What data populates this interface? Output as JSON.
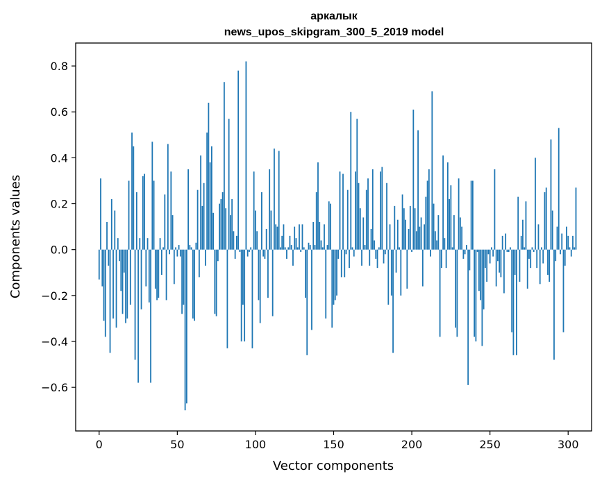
{
  "chart_data": {
    "type": "bar",
    "title": "аркалык",
    "subtitle": "news_upos_skipgram_300_5_2019 model",
    "xlabel": "Vector components",
    "ylabel": "Components values",
    "xlim": [
      -15,
      315
    ],
    "ylim": [
      -0.79,
      0.9
    ],
    "xticks": [
      0,
      50,
      100,
      150,
      200,
      250,
      300
    ],
    "xtick_labels": [
      "0",
      "50",
      "100",
      "150",
      "200",
      "250",
      "300"
    ],
    "yticks": [
      -0.6,
      -0.4,
      -0.2,
      0.0,
      0.2,
      0.4,
      0.6,
      0.8
    ],
    "ytick_labels": [
      "−0.6",
      "−0.4",
      "−0.2",
      "0.0",
      "0.2",
      "0.4",
      "0.6",
      "0.8"
    ],
    "grid": false,
    "color": "#1f77b4",
    "x_start": 0,
    "values": [
      -0.13,
      0.31,
      -0.16,
      -0.31,
      -0.38,
      0.12,
      -0.07,
      -0.45,
      0.22,
      -0.3,
      0.17,
      -0.34,
      0.05,
      -0.05,
      -0.18,
      -0.28,
      -0.1,
      -0.32,
      -0.3,
      0.3,
      -0.24,
      0.51,
      0.45,
      -0.48,
      0.25,
      -0.58,
      0.05,
      -0.26,
      0.32,
      0.33,
      -0.16,
      0.05,
      -0.23,
      -0.58,
      0.47,
      0.3,
      -0.17,
      -0.22,
      -0.21,
      0.05,
      -0.11,
      0.01,
      0.24,
      -0.22,
      0.46,
      -0.02,
      0.34,
      0.15,
      -0.15,
      0.01,
      -0.03,
      0.02,
      -0.03,
      -0.28,
      -0.24,
      -0.7,
      -0.67,
      0.35,
      0.02,
      0.01,
      -0.3,
      -0.31,
      0.03,
      0.26,
      -0.12,
      0.41,
      0.19,
      0.29,
      -0.07,
      0.51,
      0.64,
      0.38,
      0.45,
      0.16,
      -0.28,
      -0.29,
      -0.05,
      0.2,
      0.22,
      0.25,
      0.73,
      0.18,
      -0.43,
      0.57,
      0.15,
      0.22,
      0.08,
      -0.04,
      0.06,
      0.78,
      -0.01,
      -0.4,
      -0.24,
      -0.4,
      0.82,
      -0.03,
      -0.01,
      0.01,
      -0.43,
      0.34,
      0.17,
      0.08,
      -0.22,
      -0.32,
      0.25,
      -0.03,
      -0.04,
      0.09,
      -0.21,
      0.35,
      0.17,
      -0.29,
      0.44,
      0.11,
      0.1,
      0.43,
      0.01,
      0.06,
      0.11,
      0.01,
      -0.04,
      0.01,
      0.06,
      0.02,
      -0.07,
      0.1,
      0.05,
      0.01,
      0.11,
      -0.01,
      0.11,
      0.01,
      -0.21,
      -0.46,
      0.03,
      0.02,
      -0.35,
      0.12,
      0.02,
      0.25,
      0.38,
      0.12,
      0.04,
      0.01,
      0.11,
      -0.3,
      0.02,
      0.21,
      0.2,
      -0.34,
      -0.24,
      -0.22,
      -0.2,
      -0.04,
      0.34,
      -0.12,
      0.33,
      -0.12,
      -0.02,
      0.26,
      -0.08,
      0.6,
      0.01,
      -0.03,
      0.34,
      0.57,
      0.29,
      0.18,
      -0.07,
      0.14,
      0.02,
      0.26,
      0.31,
      -0.07,
      0.09,
      0.35,
      0.04,
      -0.04,
      -0.08,
      0.01,
      0.34,
      0.36,
      -0.06,
      -0.02,
      0.29,
      -0.24,
      0.11,
      -0.2,
      -0.45,
      0.19,
      -0.1,
      0.13,
      0.01,
      -0.2,
      0.24,
      0.18,
      0.13,
      -0.17,
      0.09,
      0.19,
      -0.01,
      0.61,
      0.18,
      0.08,
      0.52,
      0.1,
      0.14,
      -0.16,
      0.11,
      0.23,
      0.3,
      0.35,
      -0.03,
      0.69,
      0.2,
      0.08,
      0.04,
      0.15,
      -0.38,
      -0.08,
      0.41,
      0.05,
      -0.08,
      0.38,
      0.22,
      0.28,
      0.01,
      0.15,
      -0.34,
      -0.38,
      0.31,
      0.14,
      0.1,
      -0.04,
      -0.02,
      0.02,
      -0.59,
      -0.09,
      0.3,
      0.3,
      -0.38,
      -0.4,
      -0.01,
      -0.18,
      -0.22,
      -0.42,
      -0.26,
      -0.08,
      -0.14,
      -0.02,
      -0.06,
      0.01,
      -0.03,
      0.35,
      -0.16,
      -0.05,
      -0.1,
      -0.12,
      0.06,
      -0.19,
      0.07,
      -0.01,
      -0.01,
      0.01,
      -0.36,
      -0.46,
      -0.11,
      -0.46,
      0.23,
      -0.14,
      0.06,
      0.13,
      0.01,
      0.21,
      -0.17,
      -0.04,
      -0.08,
      0.01,
      -0.01,
      0.4,
      -0.08,
      0.11,
      -0.15,
      0.01,
      -0.06,
      0.25,
      0.27,
      -0.11,
      -0.14,
      0.48,
      0.17,
      -0.48,
      -0.05,
      0.1,
      0.53,
      -0.02,
      0.07,
      -0.36,
      -0.07,
      0.1,
      0.06,
      0.01,
      -0.03,
      0.06,
      0.01,
      0.27
    ]
  }
}
